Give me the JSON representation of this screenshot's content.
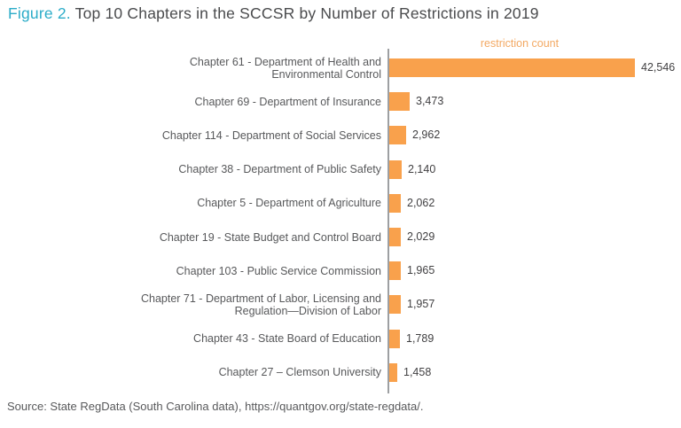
{
  "title": {
    "prefix": "Figure 2.",
    "text": " Top 10 Chapters in the SCCSR by Number of Restrictions in 2019"
  },
  "source": "Source: State RegData (South Carolina data), https://quantgov.org/state-regdata/.",
  "colors": {
    "bar": "#F9A14C",
    "axis_caption": "#F3A963",
    "title_accent": "#2BACC8",
    "title_text": "#4A4B4D",
    "label_text": "#58595B",
    "value_text": "#414042",
    "axis_line": "#9D9FA2"
  },
  "chart_data": {
    "type": "bar",
    "orientation": "horizontal",
    "title": "Figure 2. Top 10 Chapters in the SCCSR by Number of Restrictions in 2019",
    "axis_title": "restriction count",
    "xlabel": "restriction count",
    "ylabel": "",
    "xlim": [
      0,
      42546
    ],
    "grid": false,
    "legend": "none",
    "categories": [
      "Chapter 61 - Department of Health and Environmental Control",
      "Chapter 69 - Department of Insurance",
      "Chapter 114 - Department of Social Services",
      "Chapter 38 - Department of Public Safety",
      "Chapter 5 - Department of Agriculture",
      "Chapter 19 - State Budget and Control Board",
      "Chapter 103 - Public Service Commission",
      "Chapter 71 - Department of Labor, Licensing and Regulation—Division of Labor",
      "Chapter 43 - State Board of Education",
      "Chapter 27 – Clemson University"
    ],
    "values": [
      42546,
      3473,
      2962,
      2140,
      2062,
      2029,
      1965,
      1957,
      1789,
      1458
    ],
    "rows": [
      {
        "label_lines": [
          "Chapter 61 - Department of Health and",
          "Environmental Control"
        ],
        "value": 42546,
        "value_label": "42,546"
      },
      {
        "label_lines": [
          "Chapter 69 - Department of Insurance"
        ],
        "value": 3473,
        "value_label": "3,473"
      },
      {
        "label_lines": [
          "Chapter 114 - Department of Social Services"
        ],
        "value": 2962,
        "value_label": "2,962"
      },
      {
        "label_lines": [
          "Chapter 38 - Department of Public Safety"
        ],
        "value": 2140,
        "value_label": "2,140"
      },
      {
        "label_lines": [
          "Chapter 5 - Department of Agriculture"
        ],
        "value": 2062,
        "value_label": "2,062"
      },
      {
        "label_lines": [
          "Chapter 19 - State Budget and Control Board"
        ],
        "value": 2029,
        "value_label": "2,029"
      },
      {
        "label_lines": [
          "Chapter 103 - Public Service Commission"
        ],
        "value": 1965,
        "value_label": "1,965"
      },
      {
        "label_lines": [
          "Chapter 71 - Department of Labor, Licensing and",
          "Regulation—Division of Labor"
        ],
        "value": 1957,
        "value_label": "1,957"
      },
      {
        "label_lines": [
          "Chapter 43 - State Board of Education"
        ],
        "value": 1789,
        "value_label": "1,789"
      },
      {
        "label_lines": [
          "Chapter 27 – Clemson University"
        ],
        "value": 1458,
        "value_label": "1,458"
      }
    ]
  }
}
